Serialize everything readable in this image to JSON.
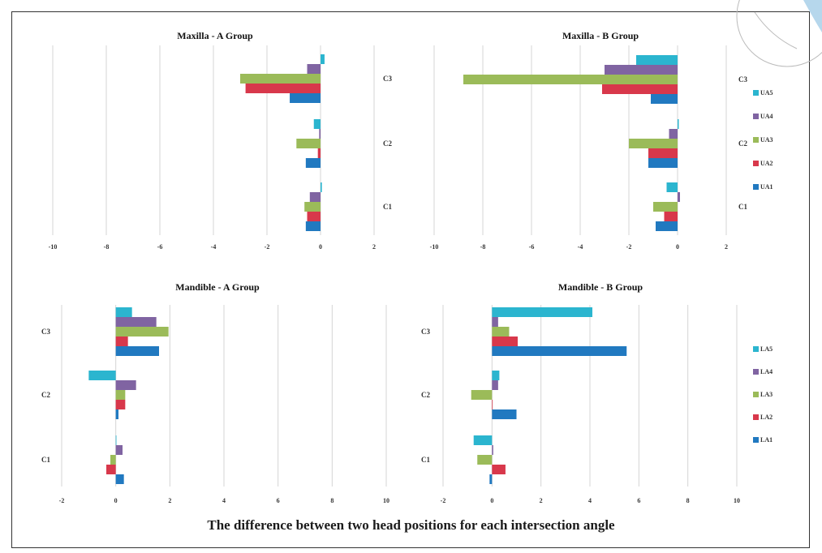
{
  "caption": "The difference between two head positions for each intersection angle",
  "colors": {
    "UA5": "#2bb5cf",
    "UA4": "#8064a2",
    "UA3": "#9bbb59",
    "UA2": "#d8384b",
    "UA1": "#2179c0",
    "LA5": "#2bb5cf",
    "LA4": "#8064a2",
    "LA3": "#9bbb59",
    "LA2": "#d8384b",
    "LA1": "#2179c0",
    "grid": "#d4d4d4"
  },
  "upper_legend": [
    "UA5",
    "UA4",
    "UA3",
    "UA2",
    "UA1"
  ],
  "lower_legend": [
    "LA5",
    "LA4",
    "LA3",
    "LA2",
    "LA1"
  ],
  "chart_data": [
    {
      "type": "bar",
      "orientation": "horizontal",
      "title": "Maxilla - A Group",
      "categories": [
        "C3",
        "C2",
        "C1"
      ],
      "xlim": [
        -10,
        2
      ],
      "xticks": [
        "-10",
        "-8",
        "-6",
        "-4",
        "-2",
        "0",
        "2"
      ],
      "grid": true,
      "legend": "none",
      "series": [
        {
          "name": "UA5",
          "values": [
            0.15,
            -0.25,
            0.05
          ]
        },
        {
          "name": "UA4",
          "values": [
            -0.5,
            -0.05,
            -0.4
          ]
        },
        {
          "name": "UA3",
          "values": [
            -3.0,
            -0.9,
            -0.6
          ]
        },
        {
          "name": "UA2",
          "values": [
            -2.8,
            -0.1,
            -0.5
          ]
        },
        {
          "name": "UA1",
          "values": [
            -1.15,
            -0.55,
            -0.55
          ]
        }
      ]
    },
    {
      "type": "bar",
      "orientation": "horizontal",
      "title": "Maxilla - B Group",
      "categories": [
        "C3",
        "C2",
        "C1"
      ],
      "xlim": [
        -10,
        2
      ],
      "xticks": [
        "-10",
        "-8",
        "-6",
        "-4",
        "-2",
        "0",
        "2"
      ],
      "grid": true,
      "legend": "right",
      "series": [
        {
          "name": "UA5",
          "values": [
            -1.7,
            0.05,
            -0.45
          ]
        },
        {
          "name": "UA4",
          "values": [
            -3.0,
            -0.35,
            0.1
          ]
        },
        {
          "name": "UA3",
          "values": [
            -8.8,
            -2.0,
            -1.0
          ]
        },
        {
          "name": "UA2",
          "values": [
            -3.1,
            -1.2,
            -0.55
          ]
        },
        {
          "name": "UA1",
          "values": [
            -1.1,
            -1.2,
            -0.9
          ]
        }
      ]
    },
    {
      "type": "bar",
      "orientation": "horizontal",
      "title": "Mandible - A Group",
      "categories": [
        "C3",
        "C2",
        "C1"
      ],
      "xlim": [
        -2,
        10
      ],
      "xticks": [
        "-2",
        "0",
        "2",
        "4",
        "6",
        "8",
        "10"
      ],
      "grid": true,
      "legend": "none",
      "series": [
        {
          "name": "LA5",
          "values": [
            0.6,
            -1.0,
            0.0
          ]
        },
        {
          "name": "LA4",
          "values": [
            1.5,
            0.75,
            0.25
          ]
        },
        {
          "name": "LA3",
          "values": [
            1.95,
            0.35,
            -0.2
          ]
        },
        {
          "name": "LA2",
          "values": [
            0.45,
            0.35,
            -0.35
          ]
        },
        {
          "name": "LA1",
          "values": [
            1.6,
            0.1,
            0.3
          ]
        }
      ]
    },
    {
      "type": "bar",
      "orientation": "horizontal",
      "title": "Mandible - B Group",
      "categories": [
        "C3",
        "C2",
        "C1"
      ],
      "xlim": [
        -2,
        10
      ],
      "xticks": [
        "-2",
        "0",
        "2",
        "4",
        "6",
        "8",
        "10"
      ],
      "grid": true,
      "legend": "right",
      "series": [
        {
          "name": "LA5",
          "values": [
            4.1,
            0.3,
            -0.75
          ]
        },
        {
          "name": "LA4",
          "values": [
            0.25,
            0.25,
            0.05
          ]
        },
        {
          "name": "LA3",
          "values": [
            0.7,
            -0.85,
            -0.6
          ]
        },
        {
          "name": "LA2",
          "values": [
            1.05,
            0.0,
            0.55
          ]
        },
        {
          "name": "LA1",
          "values": [
            5.5,
            1.0,
            -0.1
          ]
        }
      ]
    }
  ]
}
